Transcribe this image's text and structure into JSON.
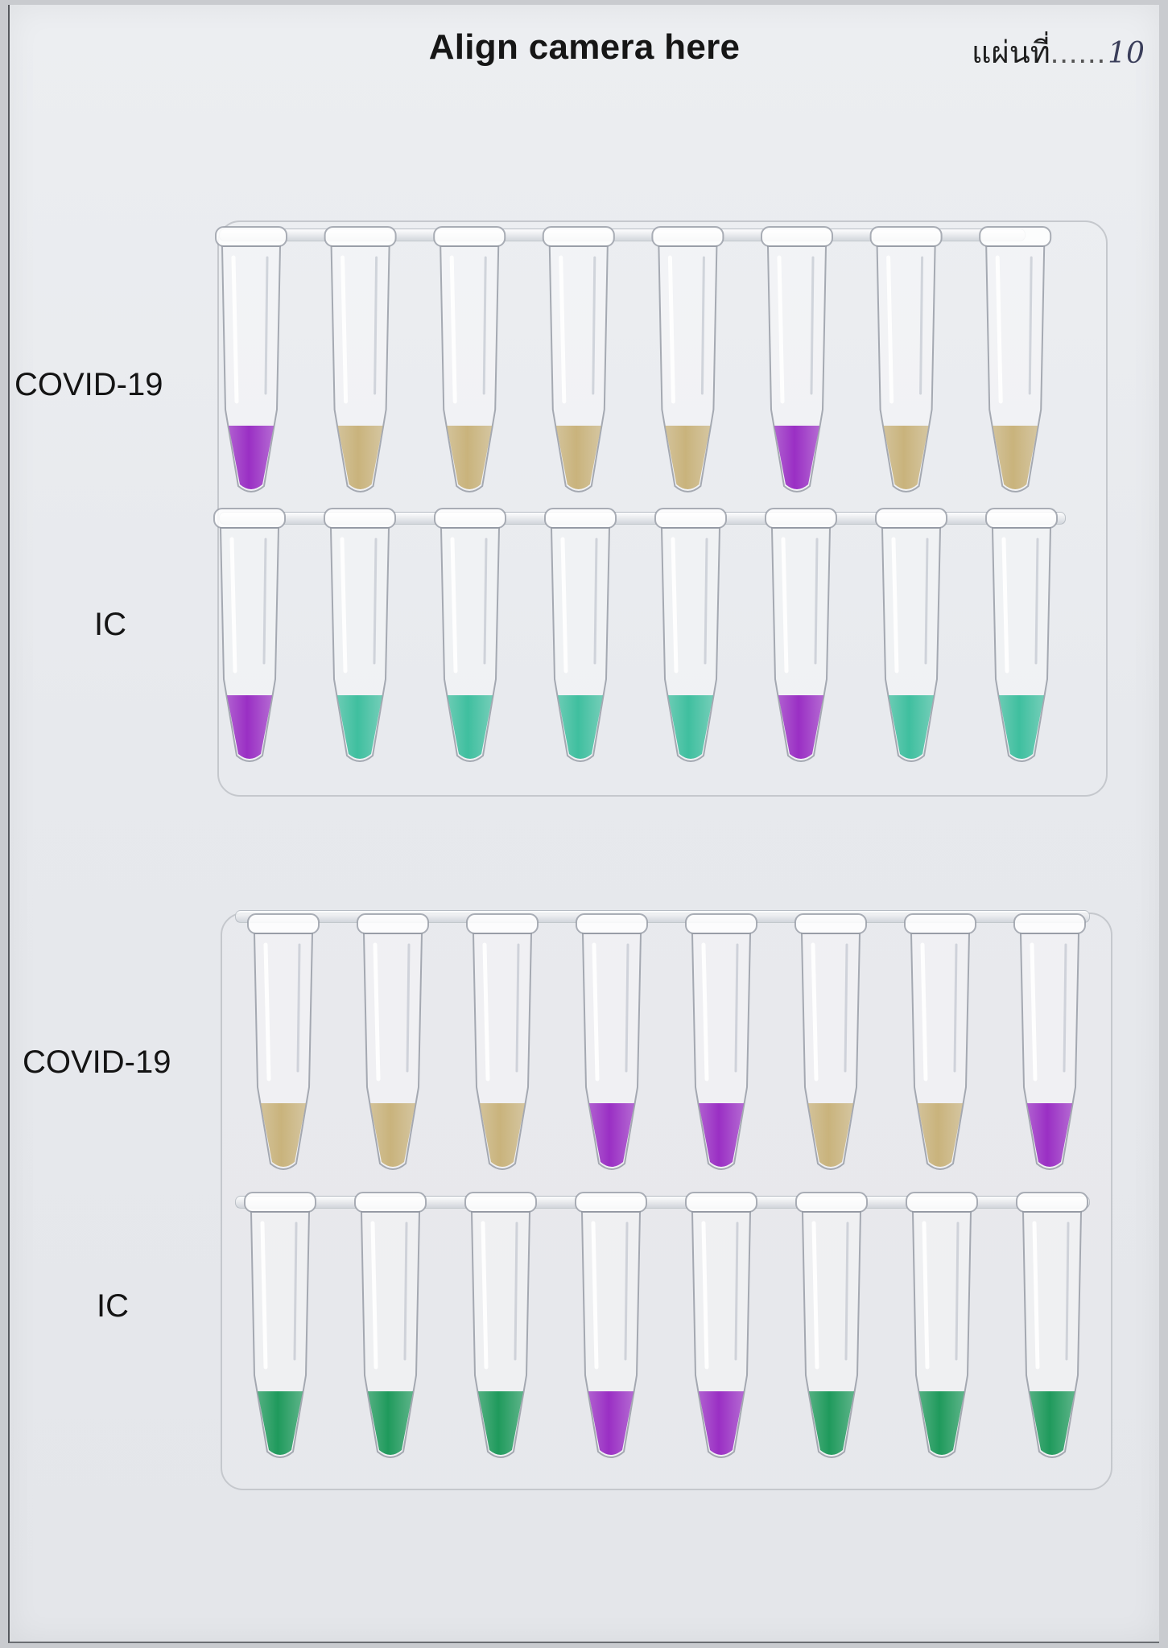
{
  "header": {
    "title": "Align camera here",
    "sheet_label": "แผ่นที่",
    "sheet_dots": "......",
    "sheet_number": "10"
  },
  "colors": {
    "purple": "#9a2fc4",
    "yellow": "#c9b37c",
    "green_light": "#3fbf9f",
    "green_dark": "#1f9a5c"
  },
  "panels": [
    {
      "rows": [
        {
          "label": "COVID-19",
          "tube_colors": [
            "purple",
            "yellow",
            "yellow",
            "yellow",
            "yellow",
            "purple",
            "yellow",
            "yellow"
          ]
        },
        {
          "label": "IC",
          "tube_colors": [
            "purple",
            "green_light",
            "green_light",
            "green_light",
            "green_light",
            "purple",
            "green_light",
            "green_light"
          ]
        }
      ]
    },
    {
      "rows": [
        {
          "label": "COVID-19",
          "tube_colors": [
            "yellow",
            "yellow",
            "yellow",
            "purple",
            "purple",
            "yellow",
            "yellow",
            "purple"
          ]
        },
        {
          "label": "IC",
          "tube_colors": [
            "green_dark",
            "green_dark",
            "green_dark",
            "purple",
            "purple",
            "green_dark",
            "green_dark",
            "green_dark"
          ]
        }
      ]
    }
  ]
}
